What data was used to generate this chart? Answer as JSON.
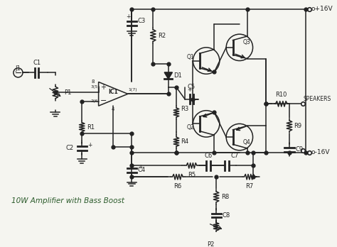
{
  "title": "10W Amplifier with Bass Boost",
  "bg_color": "#f5f5f0",
  "line_color": "#222222",
  "text_color": "#222222",
  "title_color": "#2a5a2a",
  "vcc": "o+16V",
  "vee": "o-16V"
}
